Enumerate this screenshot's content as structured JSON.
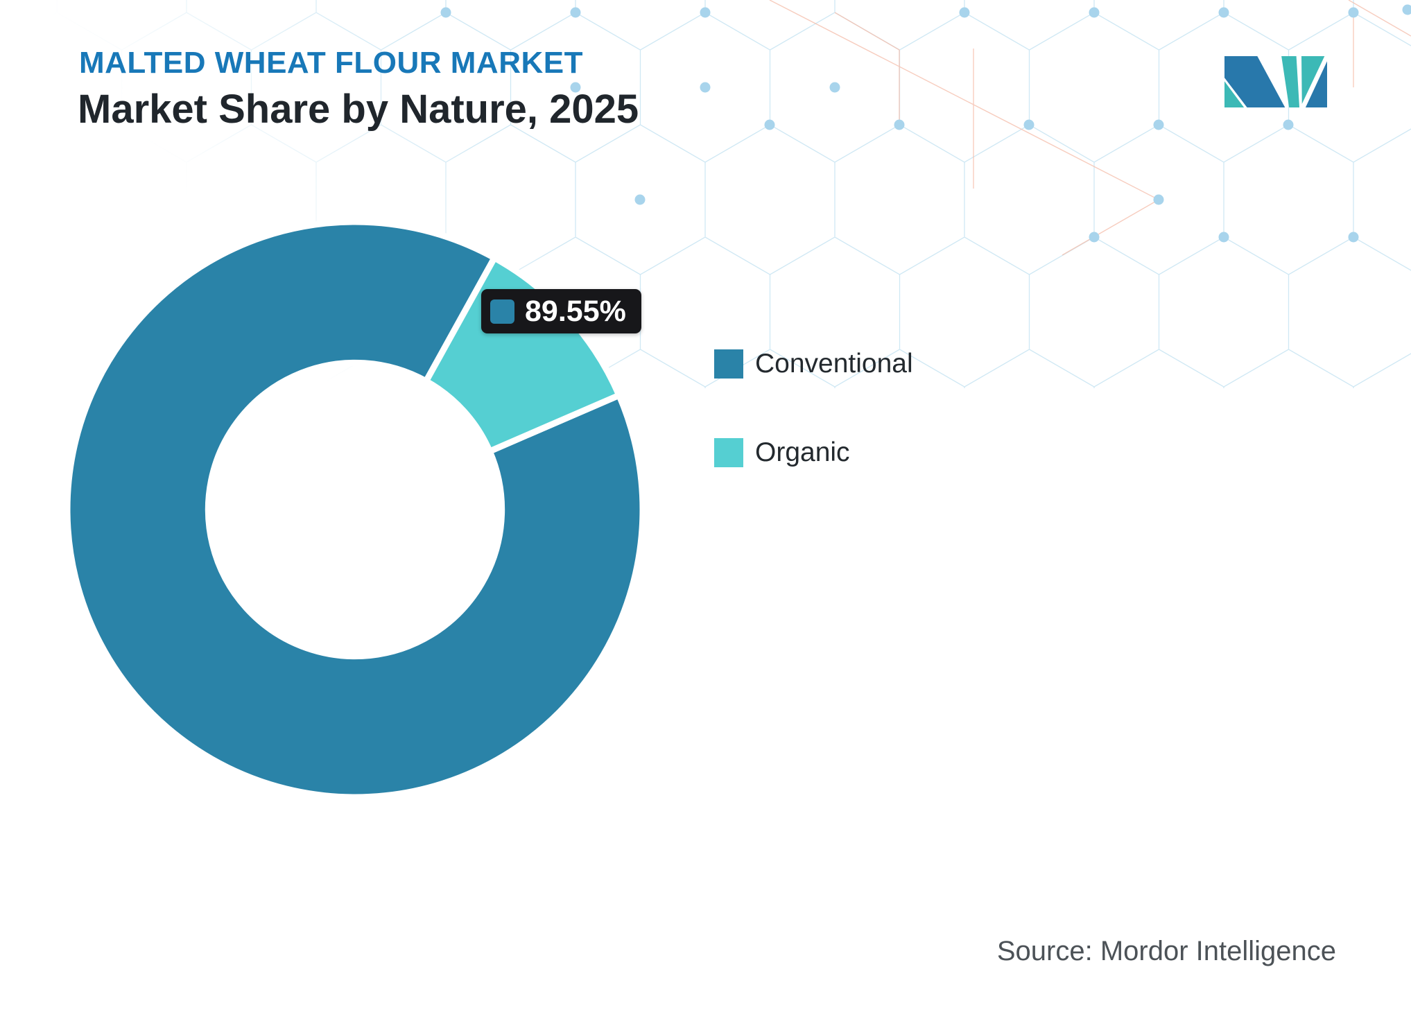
{
  "header": {
    "market_label": "MALTED WHEAT FLOUR MARKET",
    "title": "Market Share by Nature, 2025"
  },
  "tooltip": {
    "value_label": "89.55%"
  },
  "legend": {
    "items": [
      {
        "label": "Conventional",
        "color": "#2a83a8"
      },
      {
        "label": "Organic",
        "color": "#55cfd2"
      }
    ]
  },
  "footer": {
    "source": "Source: Mordor Intelligence"
  },
  "colors": {
    "title_accent": "#1878b8",
    "heading": "#20262c",
    "conventional": "#2a83a8",
    "organic": "#55cfd2",
    "tooltip_bg": "#17171a",
    "logo_blue": "#2878ab",
    "logo_teal": "#3cb9b6",
    "pattern_line": "#cfe8f4",
    "pattern_dot": "#a8d4ec",
    "pattern_accent": "#f5c0ae"
  },
  "chart_data": {
    "type": "pie",
    "subtype": "donut",
    "title": "Market Share by Nature, 2025",
    "categories": [
      "Conventional",
      "Organic"
    ],
    "values": [
      89.55,
      10.45
    ],
    "units": "%",
    "legend_position": "right",
    "start_angle_deg": 66.6,
    "inner_radius_ratio": 0.51,
    "highlighted_series": "Conventional",
    "highlighted_value": "89.55%"
  }
}
